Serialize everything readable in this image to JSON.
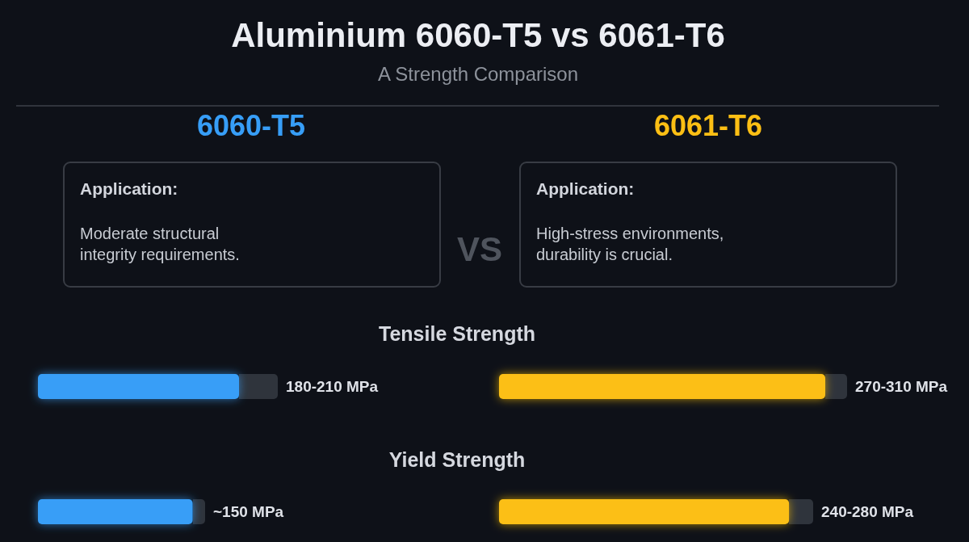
{
  "chart_data": [
    {
      "type": "other",
      "title": "Aluminium 6060-T5 vs 6061-T6",
      "subtitle": "A Strength Comparison",
      "annotations": [
        "VS"
      ]
    },
    {
      "type": "bar",
      "orientation": "horizontal",
      "title": "6060-T5",
      "color": "#379ef7",
      "categories": [
        "Tensile Strength",
        "Yield Strength"
      ],
      "values": [
        195,
        150
      ],
      "value_labels": [
        "180-210 MPa",
        "~150 MPa"
      ],
      "tick_labels": "y",
      "annotations": [
        "Application:",
        "Moderate structural\nintegrity requirements."
      ]
    },
    {
      "type": "bar",
      "orientation": "horizontal",
      "title": "6061-T6",
      "color": "#fcbf14",
      "categories": [
        null,
        null
      ],
      "values": [
        270,
        240
      ],
      "value_labels": [
        "270-310 MPa",
        "240-280 MPa"
      ],
      "tick_labels": false,
      "annotations": [
        "Application:",
        "High-stress environments,\ndurability is crucial."
      ]
    }
  ]
}
